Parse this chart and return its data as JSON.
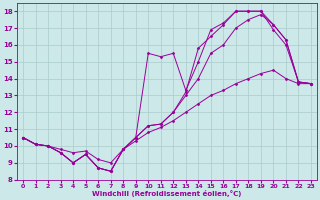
{
  "xlabel": "Windchill (Refroidissement éolien,°C)",
  "bg_color": "#cce8e8",
  "line_color": "#990099",
  "grid_color": "#aacccc",
  "xlim": [
    -0.5,
    23.5
  ],
  "ylim": [
    8,
    18.5
  ],
  "xticks": [
    0,
    1,
    2,
    3,
    4,
    5,
    6,
    7,
    8,
    9,
    10,
    11,
    12,
    13,
    14,
    15,
    16,
    17,
    18,
    19,
    20,
    21,
    22,
    23
  ],
  "yticks": [
    8,
    9,
    10,
    11,
    12,
    13,
    14,
    15,
    16,
    17,
    18
  ],
  "lines": [
    {
      "x": [
        0,
        1,
        2,
        3,
        4,
        5,
        6,
        7,
        8,
        9,
        10,
        11,
        12,
        13,
        14,
        15,
        16,
        17,
        18,
        19,
        20,
        21,
        22,
        23
      ],
      "y": [
        10.5,
        10.1,
        10.0,
        9.8,
        9.6,
        9.7,
        9.2,
        9.0,
        9.8,
        10.3,
        10.8,
        11.1,
        11.5,
        12.0,
        12.5,
        13.0,
        13.3,
        13.7,
        14.0,
        14.3,
        14.5,
        14.0,
        13.7,
        13.7
      ]
    },
    {
      "x": [
        0,
        1,
        2,
        3,
        4,
        5,
        6,
        7,
        8,
        9,
        10,
        11,
        12,
        13,
        14,
        15,
        16,
        17,
        18,
        19,
        20,
        21,
        22,
        23
      ],
      "y": [
        10.5,
        10.1,
        10.0,
        9.6,
        9.0,
        9.5,
        8.7,
        8.5,
        9.8,
        10.5,
        15.5,
        15.3,
        15.5,
        13.3,
        15.0,
        16.9,
        17.3,
        18.0,
        18.0,
        18.0,
        17.2,
        16.3,
        13.8,
        13.7
      ]
    },
    {
      "x": [
        0,
        1,
        2,
        3,
        4,
        5,
        6,
        7,
        8,
        9,
        10,
        11,
        12,
        13,
        14,
        15,
        16,
        17,
        18,
        19,
        20,
        21,
        22,
        23
      ],
      "y": [
        10.5,
        10.1,
        10.0,
        9.6,
        9.0,
        9.5,
        8.7,
        8.5,
        9.8,
        10.5,
        11.2,
        11.3,
        12.0,
        13.2,
        15.8,
        16.5,
        17.2,
        18.0,
        18.0,
        18.0,
        16.9,
        16.0,
        13.8,
        13.7
      ]
    },
    {
      "x": [
        0,
        1,
        2,
        3,
        4,
        5,
        6,
        7,
        8,
        9,
        10,
        11,
        12,
        13,
        14,
        15,
        16,
        17,
        18,
        19,
        20,
        21,
        22,
        23
      ],
      "y": [
        10.5,
        10.1,
        10.0,
        9.6,
        9.0,
        9.5,
        8.7,
        8.5,
        9.8,
        10.5,
        11.2,
        11.3,
        12.0,
        13.0,
        14.0,
        15.5,
        16.0,
        17.0,
        17.5,
        17.8,
        17.2,
        16.3,
        13.8,
        13.7
      ]
    }
  ]
}
